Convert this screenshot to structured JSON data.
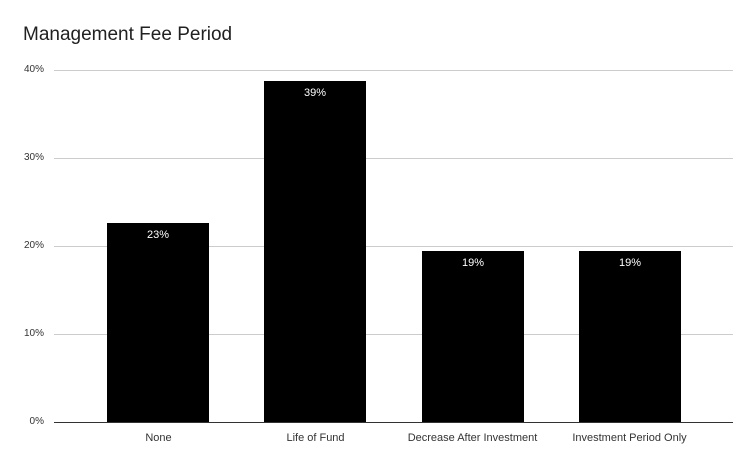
{
  "chart_data": {
    "type": "bar",
    "title": "Management Fee Period",
    "categories": [
      "None",
      "Life of Fund",
      "Decrease After Investment",
      "Investment Period Only"
    ],
    "values": [
      22.6,
      38.7,
      19.4,
      19.4
    ],
    "bar_labels": [
      "23%",
      "39%",
      "19%",
      "19%"
    ],
    "series_name": "",
    "xlabel": "",
    "ylabel": "",
    "ylim": [
      0,
      40
    ],
    "yticks": [
      0,
      10,
      20,
      30,
      40
    ],
    "ytick_labels": [
      "0%",
      "10%",
      "20%",
      "30%",
      "40%"
    ],
    "grid": "horizontal",
    "legend": "none",
    "colors": {
      "bar_fill": "#000000",
      "bar_label_text": "#ffffff",
      "gridline": "#cccccc",
      "axis_line": "#333333",
      "axis_text": "#333333",
      "title_text": "#212121",
      "background": "#ffffff"
    }
  }
}
